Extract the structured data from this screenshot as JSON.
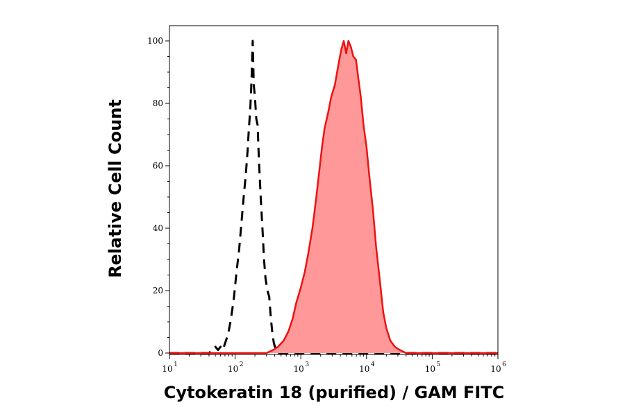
{
  "chart_data": {
    "type": "area",
    "title": "",
    "xlabel": "Cytokeratin 18 (purified) / GAM FITC",
    "ylabel": "Relative Cell Count",
    "xscale": "log",
    "xlim": [
      10,
      1000000
    ],
    "ylim": [
      0,
      100
    ],
    "x_ticks": [
      {
        "base": "10",
        "exp": "1",
        "value": 10
      },
      {
        "base": "10",
        "exp": "2",
        "value": 100
      },
      {
        "base": "10",
        "exp": "3",
        "value": 1000
      },
      {
        "base": "10",
        "exp": "4",
        "value": 10000
      },
      {
        "base": "10",
        "exp": "5",
        "value": 100000
      },
      {
        "base": "10",
        "exp": "6",
        "value": 1000000
      }
    ],
    "y_ticks": [
      "0",
      "20",
      "40",
      "60",
      "80",
      "100"
    ],
    "legend": "none",
    "series": [
      {
        "style": "dashed",
        "color": "#000000",
        "fill": "none",
        "points": [
          [
            10,
            0
          ],
          [
            40,
            0
          ],
          [
            45,
            1
          ],
          [
            50,
            2
          ],
          [
            55,
            1
          ],
          [
            60,
            2
          ],
          [
            65,
            1
          ],
          [
            70,
            3
          ],
          [
            78,
            6
          ],
          [
            85,
            10
          ],
          [
            95,
            17
          ],
          [
            105,
            26
          ],
          [
            115,
            33
          ],
          [
            125,
            42
          ],
          [
            135,
            50
          ],
          [
            145,
            57
          ],
          [
            155,
            65
          ],
          [
            162,
            72
          ],
          [
            170,
            78
          ],
          [
            178,
            88
          ],
          [
            185,
            100
          ],
          [
            192,
            86
          ],
          [
            200,
            82
          ],
          [
            210,
            75
          ],
          [
            220,
            73
          ],
          [
            230,
            62
          ],
          [
            245,
            50
          ],
          [
            260,
            40
          ],
          [
            275,
            30
          ],
          [
            290,
            24
          ],
          [
            310,
            20
          ],
          [
            330,
            18
          ],
          [
            350,
            11
          ],
          [
            370,
            6
          ],
          [
            390,
            3
          ],
          [
            420,
            1
          ],
          [
            460,
            0
          ],
          [
            1000000,
            0
          ]
        ]
      },
      {
        "style": "solid",
        "color": "#ee1111",
        "fill": "#ff9999",
        "points": [
          [
            10,
            0
          ],
          [
            300,
            0
          ],
          [
            380,
            1
          ],
          [
            450,
            2
          ],
          [
            550,
            4
          ],
          [
            650,
            7
          ],
          [
            750,
            11
          ],
          [
            850,
            16
          ],
          [
            1000,
            21
          ],
          [
            1150,
            26
          ],
          [
            1300,
            32
          ],
          [
            1500,
            40
          ],
          [
            1700,
            49
          ],
          [
            1900,
            58
          ],
          [
            2100,
            66
          ],
          [
            2300,
            72
          ],
          [
            2600,
            77
          ],
          [
            2900,
            82
          ],
          [
            3300,
            86
          ],
          [
            3700,
            92
          ],
          [
            4100,
            97
          ],
          [
            4500,
            100
          ],
          [
            4900,
            96
          ],
          [
            5300,
            100
          ],
          [
            5800,
            98
          ],
          [
            6300,
            95
          ],
          [
            6900,
            94
          ],
          [
            7500,
            88
          ],
          [
            8200,
            82
          ],
          [
            9000,
            73
          ],
          [
            10000,
            66
          ],
          [
            11000,
            57
          ],
          [
            12500,
            46
          ],
          [
            14000,
            34
          ],
          [
            16000,
            23
          ],
          [
            18000,
            13
          ],
          [
            20000,
            8
          ],
          [
            23000,
            4
          ],
          [
            27000,
            2
          ],
          [
            32000,
            1
          ],
          [
            40000,
            0
          ],
          [
            1000000,
            0
          ]
        ]
      }
    ]
  }
}
